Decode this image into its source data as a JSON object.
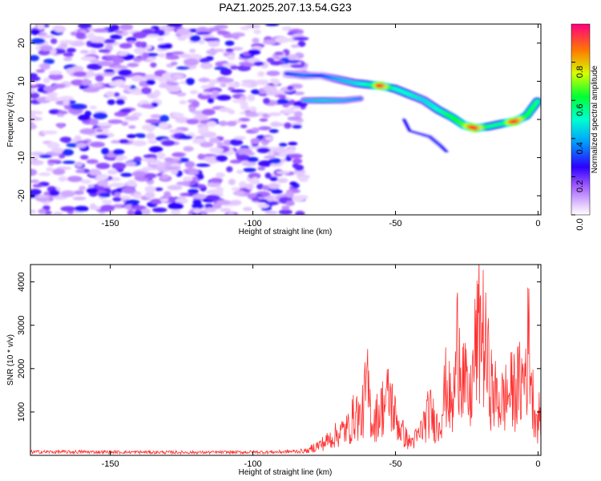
{
  "title": "PAZ1.2025.207.13.54.G23",
  "chart_data": [
    {
      "type": "heatmap",
      "xlabel": "Height of straight line (km)",
      "ylabel": "Frequency (Hz)",
      "xlim": [
        -178,
        1
      ],
      "ylim": [
        -25,
        25
      ],
      "xticks": [
        -150,
        -100,
        -50,
        0
      ],
      "yticks": [
        -20,
        -10,
        0,
        10,
        20
      ],
      "colorbar": {
        "label": "Normalized spectral amplitude",
        "range": [
          0.0,
          1.0
        ],
        "ticks": [
          0.0,
          0.2,
          0.4,
          0.6,
          0.8
        ]
      },
      "colors": [
        "#ffffff",
        "#d9b8ff",
        "#a15cff",
        "#7b00ff",
        "#2d00ff",
        "#009dff",
        "#00ffd0",
        "#00ff33",
        "#d6ff00",
        "#ff7a00",
        "#ff0040",
        "#ff0080"
      ],
      "ridge": [
        {
          "x": -88,
          "f": 12,
          "a": 0.3
        },
        {
          "x": -82,
          "f": 11.5,
          "a": 0.35
        },
        {
          "x": -76,
          "f": 11.5,
          "a": 0.3
        },
        {
          "x": -70,
          "f": 10.5,
          "a": 0.4
        },
        {
          "x": -64,
          "f": 9.5,
          "a": 0.45
        },
        {
          "x": -58,
          "f": 9,
          "a": 0.55
        },
        {
          "x": -55,
          "f": 8.8,
          "a": 0.95
        },
        {
          "x": -50,
          "f": 8,
          "a": 0.5
        },
        {
          "x": -45,
          "f": 6.5,
          "a": 0.5
        },
        {
          "x": -40,
          "f": 5,
          "a": 0.45
        },
        {
          "x": -35,
          "f": 2.5,
          "a": 0.5
        },
        {
          "x": -30,
          "f": 0.5,
          "a": 0.6
        },
        {
          "x": -26,
          "f": -1.5,
          "a": 0.65
        },
        {
          "x": -22,
          "f": -2.3,
          "a": 0.95
        },
        {
          "x": -17,
          "f": -1.8,
          "a": 0.55
        },
        {
          "x": -12,
          "f": -1,
          "a": 0.55
        },
        {
          "x": -8,
          "f": -0.5,
          "a": 0.95
        },
        {
          "x": -4,
          "f": 1,
          "a": 0.6
        },
        {
          "x": 0,
          "f": 5,
          "a": 0.55
        }
      ],
      "branches": [
        {
          "x": -82,
          "f": 5,
          "a": 0.4
        },
        {
          "x": -75,
          "f": 5,
          "a": 0.45
        },
        {
          "x": -68,
          "f": 5,
          "a": 0.4
        },
        {
          "x": -62,
          "f": 5.5,
          "a": 0.35
        },
        {
          "x": -47,
          "f": 0,
          "a": 0.25
        },
        {
          "x": -45,
          "f": -3,
          "a": 0.25
        },
        {
          "x": -38,
          "f": -4.5,
          "a": 0.3
        },
        {
          "x": -34,
          "f": -7,
          "a": 0.3
        },
        {
          "x": -32,
          "f": -8.5,
          "a": 0.25
        }
      ]
    },
    {
      "type": "line",
      "xlabel": "Height of straight line (km)",
      "ylabel": "SNR (10 * v/v)",
      "xlim": [
        -178,
        1
      ],
      "ylim": [
        0,
        4400
      ],
      "xticks": [
        -150,
        -100,
        -50,
        0
      ],
      "yticks": [
        1000,
        2000,
        3000,
        4000
      ],
      "color": "#ff3333",
      "series": [
        {
          "values": [
            {
              "x": -178,
              "y": 150
            },
            {
              "x": -160,
              "y": 150
            },
            {
              "x": -140,
              "y": 140
            },
            {
              "x": -120,
              "y": 130
            },
            {
              "x": -100,
              "y": 140
            },
            {
              "x": -90,
              "y": 150
            },
            {
              "x": -80,
              "y": 200
            },
            {
              "x": -75,
              "y": 400
            },
            {
              "x": -70,
              "y": 700
            },
            {
              "x": -66,
              "y": 900
            },
            {
              "x": -64,
              "y": 1400
            },
            {
              "x": -62,
              "y": 1100
            },
            {
              "x": -60,
              "y": 2300
            },
            {
              "x": -58,
              "y": 1000
            },
            {
              "x": -55,
              "y": 1500
            },
            {
              "x": -52,
              "y": 1900
            },
            {
              "x": -50,
              "y": 1200
            },
            {
              "x": -48,
              "y": 800
            },
            {
              "x": -45,
              "y": 400
            },
            {
              "x": -42,
              "y": 600
            },
            {
              "x": -40,
              "y": 1000
            },
            {
              "x": -38,
              "y": 1400
            },
            {
              "x": -35,
              "y": 900
            },
            {
              "x": -32,
              "y": 2300
            },
            {
              "x": -30,
              "y": 1300
            },
            {
              "x": -28,
              "y": 3900
            },
            {
              "x": -26,
              "y": 2400
            },
            {
              "x": -24,
              "y": 1600
            },
            {
              "x": -22,
              "y": 3300
            },
            {
              "x": -20,
              "y": 4300
            },
            {
              "x": -18,
              "y": 3000
            },
            {
              "x": -16,
              "y": 2000
            },
            {
              "x": -13,
              "y": 1700
            },
            {
              "x": -10,
              "y": 2000
            },
            {
              "x": -7,
              "y": 2200
            },
            {
              "x": -5,
              "y": 2400
            },
            {
              "x": -3,
              "y": 3800
            },
            {
              "x": -2,
              "y": 1900
            },
            {
              "x": 0,
              "y": 1000
            },
            {
              "x": 1,
              "y": 1700
            }
          ]
        }
      ]
    }
  ]
}
